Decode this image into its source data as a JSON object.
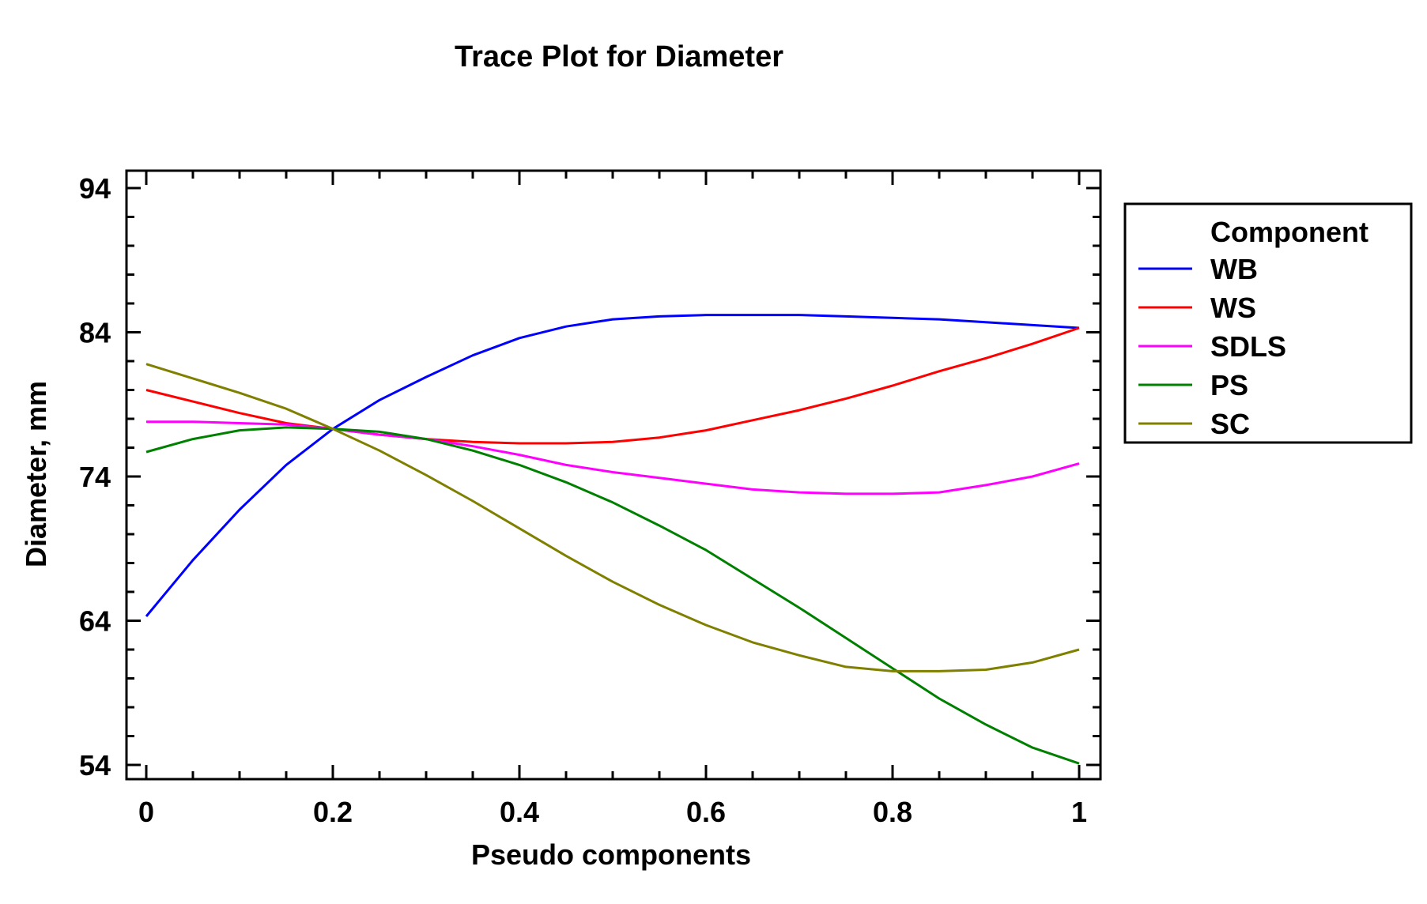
{
  "chart_data": {
    "type": "line",
    "title": "Trace Plot for Diameter",
    "xlabel": "Pseudo components",
    "ylabel": "Diameter, mm",
    "xlim": [
      0,
      1
    ],
    "ylim": [
      53,
      95
    ],
    "xticks": [
      0,
      0.2,
      0.4,
      0.6,
      0.8,
      1
    ],
    "xtick_labels": [
      "0",
      "0.2",
      "0.4",
      "0.6",
      "0.8",
      "1"
    ],
    "yticks": [
      54,
      64,
      74,
      84,
      94
    ],
    "ytick_labels": [
      "54",
      "64",
      "74",
      "84",
      "94"
    ],
    "grid": false,
    "legend": {
      "title": "Component",
      "position": "right"
    },
    "x": [
      0,
      0.05,
      0.1,
      0.15,
      0.2,
      0.25,
      0.3,
      0.35,
      0.4,
      0.45,
      0.5,
      0.55,
      0.6,
      0.65,
      0.7,
      0.75,
      0.8,
      0.85,
      0.9,
      0.95,
      1.0
    ],
    "series": [
      {
        "name": "WB",
        "color": "#0000ff",
        "values": [
          64.3,
          68.2,
          71.7,
          74.8,
          77.3,
          79.3,
          80.9,
          82.4,
          83.6,
          84.4,
          84.9,
          85.1,
          85.2,
          85.2,
          85.2,
          85.1,
          85.0,
          84.9,
          84.7,
          84.5,
          84.3
        ]
      },
      {
        "name": "WS",
        "color": "#ff0000",
        "values": [
          80.0,
          79.2,
          78.4,
          77.7,
          77.3,
          76.9,
          76.6,
          76.4,
          76.3,
          76.3,
          76.4,
          76.7,
          77.2,
          77.9,
          78.6,
          79.4,
          80.3,
          81.3,
          82.2,
          83.2,
          84.3
        ]
      },
      {
        "name": "SDLS",
        "color": "#ff00ff",
        "values": [
          77.8,
          77.8,
          77.7,
          77.6,
          77.3,
          76.9,
          76.6,
          76.1,
          75.5,
          74.8,
          74.3,
          73.9,
          73.5,
          73.1,
          72.9,
          72.8,
          72.8,
          72.9,
          73.4,
          74.0,
          74.9
        ]
      },
      {
        "name": "PS",
        "color": "#008000",
        "values": [
          75.7,
          76.6,
          77.2,
          77.4,
          77.3,
          77.1,
          76.6,
          75.8,
          74.8,
          73.6,
          72.2,
          70.6,
          68.9,
          66.9,
          64.9,
          62.8,
          60.7,
          58.6,
          56.8,
          55.2,
          54.1
        ]
      },
      {
        "name": "SC",
        "color": "#808000",
        "values": [
          81.8,
          80.8,
          79.8,
          78.7,
          77.3,
          75.8,
          74.1,
          72.3,
          70.4,
          68.5,
          66.7,
          65.1,
          63.7,
          62.5,
          61.6,
          60.8,
          60.5,
          60.5,
          60.6,
          61.1,
          62.0
        ]
      }
    ]
  }
}
